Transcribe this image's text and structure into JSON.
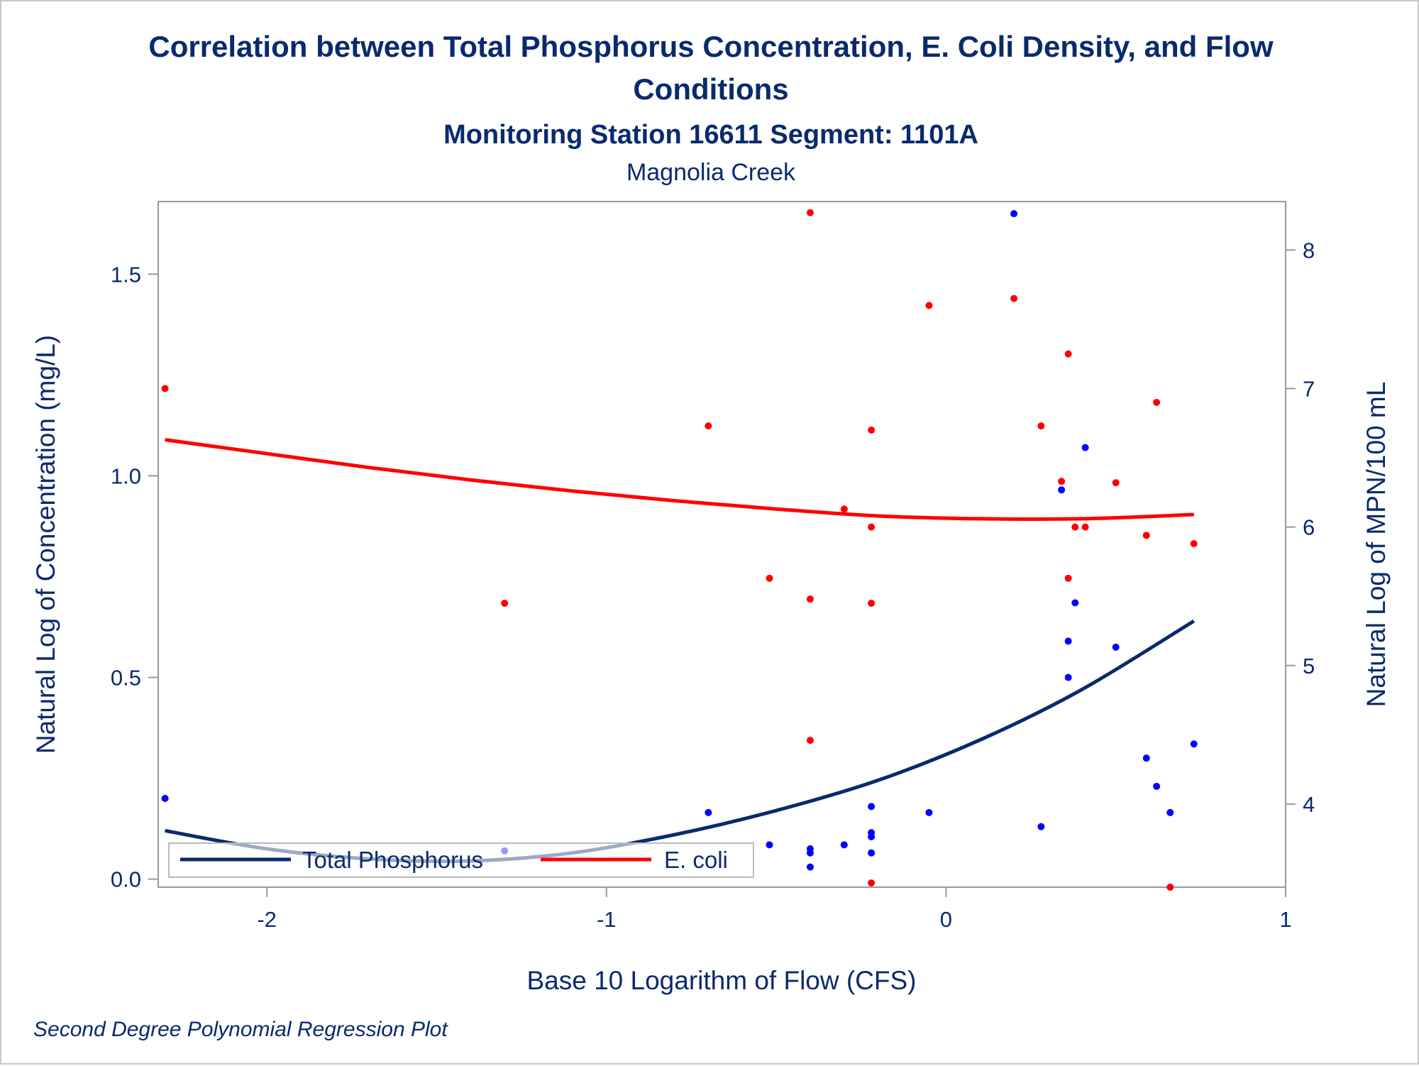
{
  "chart_data": {
    "type": "scatter",
    "title_line1": "Correlation between Total Phosphorus Concentration, E. Coli Density, and Flow",
    "title_line2": "Conditions",
    "subtitle": "Monitoring Station 16611 Segment: 1101A",
    "subtitle2": "Magnolia Creek",
    "xlabel": "Base 10 Logarithm of Flow (CFS)",
    "ylabel_left": "Natural Log of Concentration (mg/L)",
    "ylabel_right": "Natural Log of MPN/100 mL",
    "footnote": "Second Degree Polynomial Regression Plot",
    "xlim": [
      -2.32,
      1.0
    ],
    "ylim_left": [
      -0.02,
      1.68
    ],
    "ylim_right": [
      3.4,
      8.35
    ],
    "x_ticks": [
      -2,
      -1,
      0,
      1
    ],
    "x_tick_labels": [
      "-2",
      "-1",
      "0",
      "1"
    ],
    "y_left_ticks": [
      0.0,
      0.5,
      1.0,
      1.5
    ],
    "y_left_tick_labels": [
      "0.0",
      "0.5",
      "1.0",
      "1.5"
    ],
    "y_right_ticks": [
      4,
      5,
      6,
      7,
      8
    ],
    "y_right_tick_labels": [
      "4",
      "5",
      "6",
      "7",
      "8"
    ],
    "legend_position": "bottom-left inside",
    "series": [
      {
        "name": "Total Phosphorus",
        "axis": "left",
        "color": "#0a2a6e",
        "point_color": "#0000ff",
        "points": [
          [
            -2.3,
            0.2
          ],
          [
            -1.3,
            0.07
          ],
          [
            -0.7,
            0.165
          ],
          [
            -0.52,
            0.085
          ],
          [
            -0.4,
            0.075
          ],
          [
            -0.4,
            0.065
          ],
          [
            -0.4,
            0.03
          ],
          [
            -0.3,
            0.085
          ],
          [
            -0.22,
            0.18
          ],
          [
            -0.22,
            0.115
          ],
          [
            -0.22,
            0.105
          ],
          [
            -0.22,
            0.065
          ],
          [
            -0.05,
            0.165
          ],
          [
            0.2,
            1.65
          ],
          [
            0.28,
            0.13
          ],
          [
            0.34,
            0.965
          ],
          [
            0.36,
            0.59
          ],
          [
            0.36,
            0.5
          ],
          [
            0.38,
            0.685
          ],
          [
            0.41,
            1.07
          ],
          [
            0.5,
            0.575
          ],
          [
            0.59,
            0.3
          ],
          [
            0.62,
            0.23
          ],
          [
            0.66,
            0.165
          ],
          [
            0.73,
            0.335
          ]
        ],
        "fit": [
          [
            -2.3,
            0.12
          ],
          [
            -2.0,
            0.075
          ],
          [
            -1.7,
            0.05
          ],
          [
            -1.4,
            0.045
          ],
          [
            -1.1,
            0.065
          ],
          [
            -0.8,
            0.11
          ],
          [
            -0.5,
            0.17
          ],
          [
            -0.2,
            0.245
          ],
          [
            0.1,
            0.345
          ],
          [
            0.4,
            0.47
          ],
          [
            0.73,
            0.64
          ]
        ]
      },
      {
        "name": "E. coli",
        "axis": "right",
        "color": "#ff0000",
        "point_color": "#ff0000",
        "points": [
          [
            -2.3,
            7.0
          ],
          [
            -1.3,
            5.45
          ],
          [
            -0.7,
            6.73
          ],
          [
            -0.52,
            5.63
          ],
          [
            -0.4,
            8.27
          ],
          [
            -0.4,
            5.48
          ],
          [
            -0.4,
            4.46
          ],
          [
            -0.3,
            6.13
          ],
          [
            -0.22,
            6.7
          ],
          [
            -0.22,
            6.0
          ],
          [
            -0.22,
            5.45
          ],
          [
            -0.22,
            3.43
          ],
          [
            -0.05,
            7.6
          ],
          [
            0.2,
            7.65
          ],
          [
            0.28,
            6.73
          ],
          [
            0.34,
            6.33
          ],
          [
            0.36,
            7.25
          ],
          [
            0.36,
            5.63
          ],
          [
            0.38,
            6.0
          ],
          [
            0.41,
            6.0
          ],
          [
            0.5,
            6.32
          ],
          [
            0.59,
            5.94
          ],
          [
            0.62,
            6.9
          ],
          [
            0.66,
            3.4
          ],
          [
            0.73,
            5.88
          ]
        ],
        "fit": [
          [
            -2.3,
            6.63
          ],
          [
            -2.0,
            6.53
          ],
          [
            -1.7,
            6.43
          ],
          [
            -1.4,
            6.34
          ],
          [
            -1.1,
            6.26
          ],
          [
            -0.8,
            6.19
          ],
          [
            -0.5,
            6.13
          ],
          [
            -0.2,
            6.08
          ],
          [
            0.1,
            6.06
          ],
          [
            0.4,
            6.06
          ],
          [
            0.73,
            6.09
          ]
        ]
      }
    ]
  }
}
